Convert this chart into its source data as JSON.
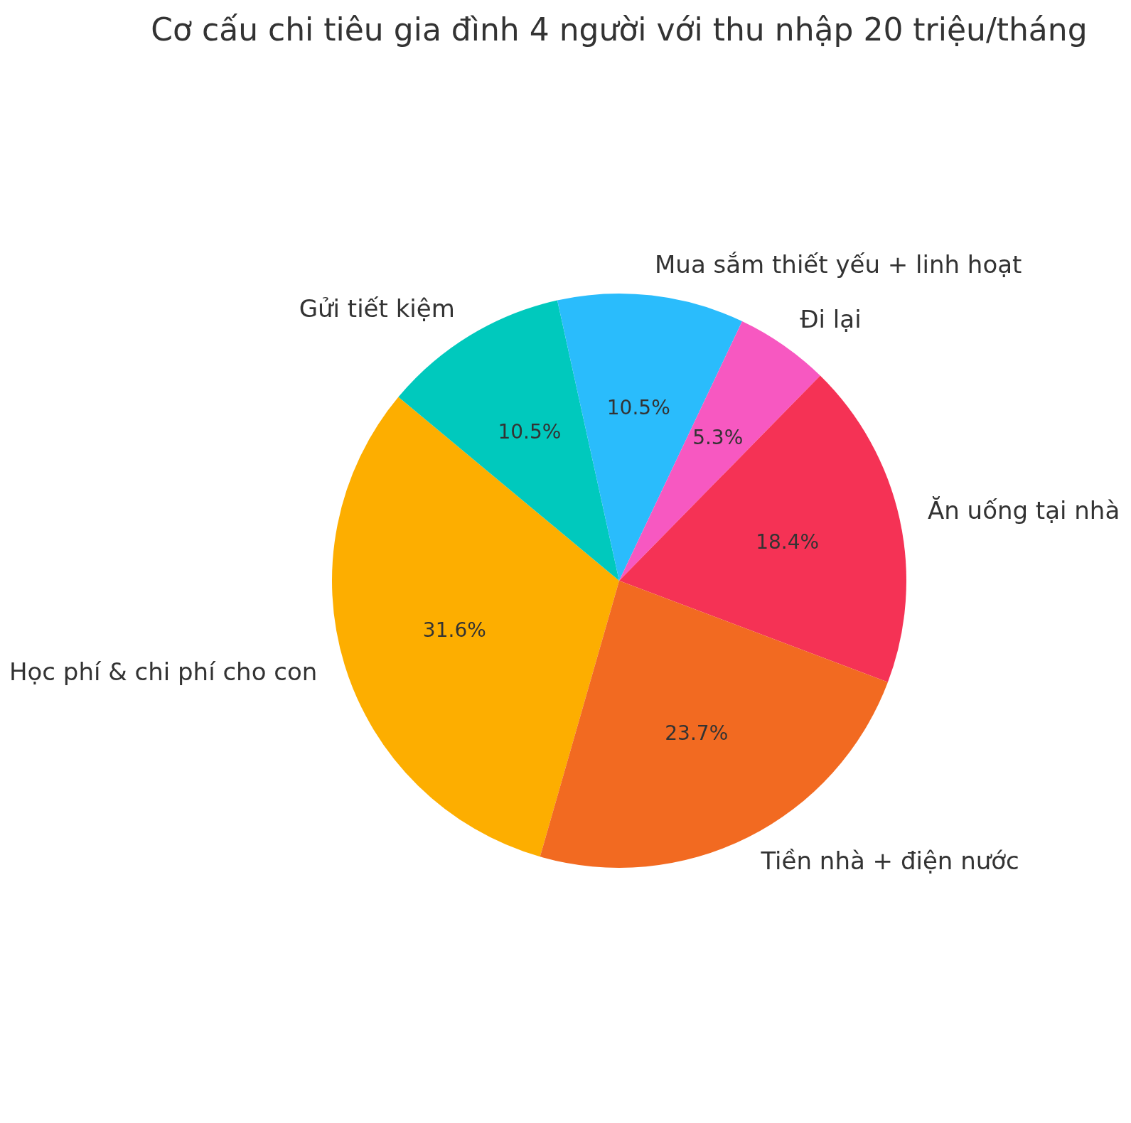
{
  "chart_data": {
    "type": "pie",
    "title": "Cơ cấu chi tiêu gia đình 4 người với thu nhập 20 triệu/tháng",
    "categories": [
      "Học phí & chi phí cho con",
      "Gửi tiết kiệm",
      "Mua sắm thiết yếu + linh hoạt",
      "Đi lại",
      "Ăn uống tại nhà",
      "Tiền nhà + điện nước"
    ],
    "values": [
      31.6,
      10.5,
      10.5,
      5.3,
      18.4,
      23.7
    ],
    "colors": [
      "#fdae00",
      "#00c9bd",
      "#2abcfc",
      "#f758c1",
      "#f53255",
      "#f26a21"
    ],
    "value_labels": [
      "31.6%",
      "10.5%",
      "10.5%",
      "5.3%",
      "18.4%",
      "23.7%"
    ],
    "legend": false
  }
}
